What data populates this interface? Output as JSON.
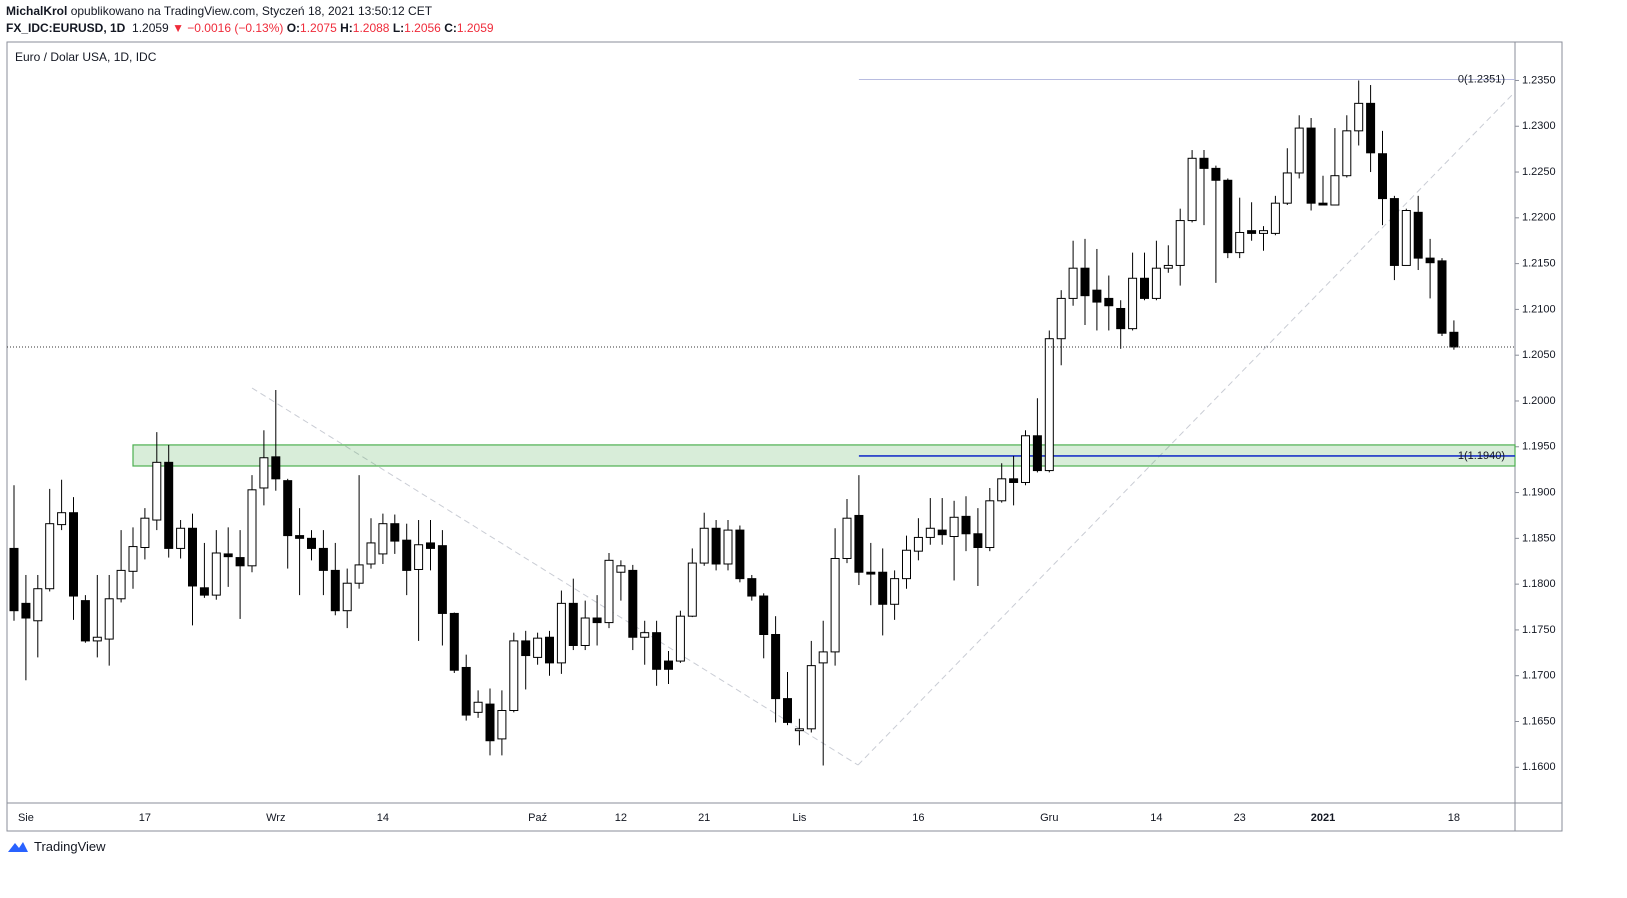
{
  "header": {
    "author": "MichalKrol",
    "published": "opublikowano na TradingView.com, Styczeń 18, 2021 13:50:12 CET",
    "symbol": "FX_IDC:EURUSD, 1D",
    "price": "1.2059",
    "change": "▼ −0.0016 (−0.13%)",
    "ohlc": [
      {
        "label": "O:",
        "value": "1.2075"
      },
      {
        "label": "H:",
        "value": "1.2088"
      },
      {
        "label": "L:",
        "value": "1.2056"
      },
      {
        "label": "C:",
        "value": "1.2059"
      }
    ]
  },
  "footer": {
    "brand": "TradingView"
  },
  "chart_data": {
    "type": "candlestick",
    "title": "Euro / Dolar USA, 1D, IDC",
    "categories": [
      null,
      "Sie",
      null,
      null,
      null,
      null,
      null,
      null,
      null,
      null,
      null,
      "17",
      null,
      null,
      null,
      null,
      null,
      null,
      null,
      null,
      null,
      null,
      "Wrz",
      null,
      null,
      null,
      null,
      null,
      null,
      null,
      null,
      "14",
      null,
      null,
      null,
      null,
      null,
      null,
      null,
      null,
      null,
      null,
      null,
      null,
      "Paź",
      null,
      null,
      null,
      null,
      null,
      null,
      "12",
      null,
      null,
      null,
      null,
      null,
      null,
      "21",
      null,
      null,
      null,
      null,
      null,
      null,
      null,
      "Lis",
      null,
      null,
      null,
      null,
      null,
      null,
      null,
      null,
      null,
      "16",
      null,
      null,
      null,
      null,
      null,
      null,
      null,
      null,
      null,
      null,
      "Gru",
      null,
      null,
      null,
      null,
      null,
      null,
      null,
      null,
      "14",
      null,
      null,
      null,
      null,
      null,
      null,
      "23",
      null,
      null,
      null,
      null,
      null,
      null,
      "2021",
      null,
      null,
      null,
      null,
      null,
      null,
      null,
      null,
      null,
      null,
      "18"
    ],
    "open": [
      1.1839,
      1.1779,
      1.176,
      1.1795,
      1.1865,
      1.1878,
      1.1782,
      1.1738,
      1.174,
      1.1784,
      1.1814,
      1.184,
      1.187,
      1.1933,
      1.1839,
      1.1861,
      1.1796,
      1.1788,
      1.1833,
      1.1829,
      1.182,
      1.1905,
      1.1939,
      1.1913,
      1.1853,
      1.185,
      1.1839,
      1.1815,
      1.1771,
      1.1801,
      1.1822,
      1.1833,
      1.1866,
      1.1848,
      1.1816,
      1.1845,
      1.1842,
      1.1768,
      1.1709,
      1.166,
      1.1669,
      1.1631,
      1.1662,
      1.1738,
      1.172,
      1.1742,
      1.1714,
      1.1779,
      1.1733,
      1.1763,
      1.1758,
      1.1813,
      1.1815,
      1.1742,
      1.1747,
      1.1716,
      1.1716,
      1.1765,
      1.1823,
      1.1861,
      1.1822,
      1.1859,
      1.1806,
      1.1787,
      1.1745,
      1.1675,
      1.164,
      1.1642,
      1.1714,
      1.1726,
      1.1828,
      1.1875,
      1.1813,
      1.1813,
      1.1778,
      1.1806,
      1.1836,
      1.1851,
      1.1859,
      1.1852,
      1.1874,
      1.1855,
      1.184,
      1.1891,
      1.1915,
      1.1911,
      1.1962,
      1.1924,
      1.2068,
      1.2112,
      1.2145,
      1.2121,
      1.2112,
      1.2101,
      1.2079,
      1.2134,
      1.2112,
      1.2145,
      1.2148,
      1.2197,
      1.2265,
      1.2254,
      1.2241,
      1.2162,
      1.2186,
      1.2183,
      1.2183,
      1.2216,
      1.2249,
      1.2298,
      1.2216,
      1.2214,
      1.2246,
      1.2295,
      1.2325,
      1.227,
      1.2221,
      1.2148,
      1.2206,
      1.2156,
      1.2153,
      1.2075
    ],
    "high": [
      1.1908,
      1.181,
      1.181,
      1.1904,
      1.1914,
      1.1895,
      1.1788,
      1.181,
      1.181,
      1.1859,
      1.1862,
      1.1883,
      1.1966,
      1.1952,
      1.187,
      1.1877,
      1.1845,
      1.1859,
      1.1862,
      1.1859,
      1.1919,
      1.1968,
      1.2012,
      1.1915,
      1.1883,
      1.1859,
      1.1859,
      1.1845,
      1.1817,
      1.1919,
      1.1872,
      1.1877,
      1.1876,
      1.1866,
      1.187,
      1.187,
      1.1859,
      1.1769,
      1.1723,
      1.1684,
      1.1686,
      1.1684,
      1.1747,
      1.1749,
      1.1747,
      1.1749,
      1.1793,
      1.1806,
      1.1782,
      1.1788,
      1.1834,
      1.1826,
      1.1821,
      1.176,
      1.176,
      1.1727,
      1.1771,
      1.1839,
      1.1878,
      1.187,
      1.187,
      1.1864,
      1.181,
      1.179,
      1.1765,
      1.1704,
      1.1653,
      1.1738,
      1.176,
      1.1861,
      1.1893,
      1.1919,
      1.1845,
      1.1839,
      1.1815,
      1.1853,
      1.1872,
      1.1894,
      1.1894,
      1.1891,
      1.1896,
      1.1883,
      1.1905,
      1.1932,
      1.194,
      1.1968,
      1.2003,
      1.2077,
      1.2121,
      1.2175,
      1.2177,
      1.2166,
      1.2137,
      1.211,
      1.2162,
      1.2162,
      1.2175,
      1.217,
      1.221,
      1.2274,
      1.2274,
      1.2257,
      1.2243,
      1.2222,
      1.2217,
      1.2191,
      1.2224,
      1.2276,
      1.2312,
      1.2309,
      1.2246,
      1.2298,
      1.2312,
      1.235,
      1.2345,
      1.2295,
      1.2224,
      1.221,
      1.2224,
      1.2177,
      1.2156,
      1.2088
    ],
    "low": [
      1.176,
      1.1695,
      1.172,
      1.1792,
      1.1859,
      1.1761,
      1.1736,
      1.172,
      1.1711,
      1.178,
      1.1795,
      1.1827,
      1.1859,
      1.1829,
      1.1828,
      1.1755,
      1.1785,
      1.1783,
      1.1797,
      1.1762,
      1.1813,
      1.1886,
      1.1902,
      1.1817,
      1.1788,
      1.1826,
      1.1788,
      1.1766,
      1.1752,
      1.1795,
      1.1817,
      1.1822,
      1.1833,
      1.1788,
      1.1738,
      1.1815,
      1.1733,
      1.1703,
      1.1651,
      1.1654,
      1.1613,
      1.1613,
      1.166,
      1.1685,
      1.1712,
      1.17,
      1.1702,
      1.1728,
      1.1728,
      1.1733,
      1.1752,
      1.1782,
      1.1728,
      1.1712,
      1.1689,
      1.1691,
      1.1714,
      1.1764,
      1.182,
      1.1815,
      1.1815,
      1.1802,
      1.1782,
      1.1719,
      1.1649,
      1.1646,
      1.1624,
      1.1638,
      1.1602,
      1.1711,
      1.1823,
      1.1799,
      1.1777,
      1.1744,
      1.1761,
      1.1795,
      1.1826,
      1.1843,
      1.1843,
      1.1804,
      1.1836,
      1.1798,
      1.1836,
      1.1889,
      1.1886,
      1.1908,
      1.1922,
      1.1922,
      1.2039,
      1.2104,
      1.2083,
      1.2077,
      1.2077,
      1.2057,
      1.2077,
      1.211,
      1.211,
      1.214,
      1.2126,
      1.2195,
      1.2192,
      1.2129,
      1.2156,
      1.2156,
      1.2175,
      1.2164,
      1.2181,
      1.2214,
      1.2243,
      1.2208,
      1.2214,
      1.2214,
      1.2244,
      1.2279,
      1.225,
      1.2192,
      1.2132,
      1.2148,
      1.2143,
      1.2112,
      1.2071,
      1.2056
    ],
    "close": [
      1.1771,
      1.1763,
      1.1795,
      1.1866,
      1.1878,
      1.1787,
      1.1738,
      1.1742,
      1.1784,
      1.1815,
      1.1841,
      1.1872,
      1.1933,
      1.1839,
      1.1861,
      1.1798,
      1.1788,
      1.1834,
      1.183,
      1.182,
      1.1903,
      1.1938,
      1.1915,
      1.1853,
      1.185,
      1.1839,
      1.1815,
      1.1771,
      1.1801,
      1.1821,
      1.1845,
      1.1866,
      1.1847,
      1.1815,
      1.1843,
      1.1839,
      1.1768,
      1.1706,
      1.1657,
      1.1671,
      1.1629,
      1.1662,
      1.1738,
      1.1722,
      1.1741,
      1.1714,
      1.1779,
      1.1733,
      1.1763,
      1.1758,
      1.1826,
      1.182,
      1.1742,
      1.1747,
      1.1707,
      1.1707,
      1.1765,
      1.1823,
      1.1861,
      1.1822,
      1.1859,
      1.1806,
      1.1787,
      1.1745,
      1.1675,
      1.1649,
      1.1642,
      1.1711,
      1.1726,
      1.1828,
      1.1872,
      1.1813,
      1.1811,
      1.1778,
      1.1806,
      1.1837,
      1.1851,
      1.1861,
      1.1854,
      1.1873,
      1.1855,
      1.184,
      1.1891,
      1.1915,
      1.1911,
      1.1962,
      1.1924,
      1.2068,
      1.2112,
      1.2145,
      1.2115,
      1.2108,
      1.2104,
      1.2079,
      1.2134,
      1.2112,
      1.2145,
      1.2148,
      1.2197,
      1.2265,
      1.2254,
      1.2241,
      1.2162,
      1.2184,
      1.2183,
      1.2186,
      1.2216,
      1.2249,
      1.2298,
      1.2216,
      1.2214,
      1.2246,
      1.2295,
      1.2325,
      1.2271,
      1.2221,
      1.2148,
      1.2208,
      1.2156,
      1.2151,
      1.2074,
      1.2059
    ],
    "up_color": "#ffffff",
    "down_color": "#000000",
    "ylim": [
      1.1561,
      1.2392
    ],
    "yticks": [
      {
        "value": 1.16,
        "label": "1.1600"
      },
      {
        "value": 1.165,
        "label": "1.1650"
      },
      {
        "value": 1.17,
        "label": "1.1700"
      },
      {
        "value": 1.175,
        "label": "1.1750"
      },
      {
        "value": 1.18,
        "label": "1.1800"
      },
      {
        "value": 1.185,
        "label": "1.1850"
      },
      {
        "value": 1.19,
        "label": "1.1900"
      },
      {
        "value": 1.195,
        "label": "1.1950"
      },
      {
        "value": 1.2,
        "label": "1.2000"
      },
      {
        "value": 1.205,
        "label": "1.2050"
      },
      {
        "value": 1.21,
        "label": "1.2100"
      },
      {
        "value": 1.215,
        "label": "1.2150"
      },
      {
        "value": 1.22,
        "label": "1.2200"
      },
      {
        "value": 1.225,
        "label": "1.2250"
      },
      {
        "value": 1.23,
        "label": "1.2300"
      },
      {
        "value": 1.235,
        "label": "1.2350"
      }
    ],
    "grid": false,
    "fib_levels": [
      {
        "value": 1.2351,
        "label": "0(1.2351)",
        "color": "#b8bce0"
      },
      {
        "value": 1.194,
        "label": "1(1.1940)",
        "color": "#1c35c9"
      }
    ],
    "zone": {
      "low": 1.1929,
      "high": 1.1952,
      "color": "#4caf50"
    }
  }
}
